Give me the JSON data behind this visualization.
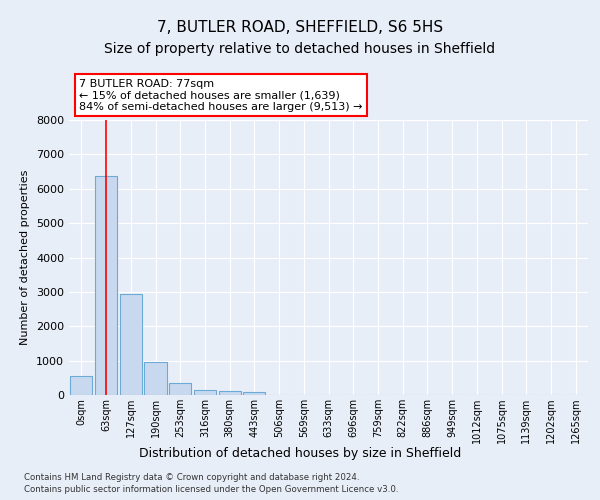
{
  "title": "7, BUTLER ROAD, SHEFFIELD, S6 5HS",
  "subtitle": "Size of property relative to detached houses in Sheffield",
  "xlabel": "Distribution of detached houses by size in Sheffield",
  "ylabel": "Number of detached properties",
  "footer_line1": "Contains HM Land Registry data © Crown copyright and database right 2024.",
  "footer_line2": "Contains public sector information licensed under the Open Government Licence v3.0.",
  "bar_labels": [
    "0sqm",
    "63sqm",
    "127sqm",
    "190sqm",
    "253sqm",
    "316sqm",
    "380sqm",
    "443sqm",
    "506sqm",
    "569sqm",
    "633sqm",
    "696sqm",
    "759sqm",
    "822sqm",
    "886sqm",
    "949sqm",
    "1012sqm",
    "1075sqm",
    "1139sqm",
    "1202sqm",
    "1265sqm"
  ],
  "bar_values": [
    550,
    6380,
    2930,
    970,
    340,
    160,
    110,
    80,
    0,
    0,
    0,
    0,
    0,
    0,
    0,
    0,
    0,
    0,
    0,
    0,
    0
  ],
  "bar_color": "#c8d9ef",
  "bar_edge_color": "#6aaad4",
  "property_line_x": 1,
  "annotation_text_line1": "7 BUTLER ROAD: 77sqm",
  "annotation_text_line2": "← 15% of detached houses are smaller (1,639)",
  "annotation_text_line3": "84% of semi-detached houses are larger (9,513) →",
  "annotation_box_facecolor": "white",
  "annotation_box_edgecolor": "red",
  "ylim": [
    0,
    8000
  ],
  "yticks": [
    0,
    1000,
    2000,
    3000,
    4000,
    5000,
    6000,
    7000,
    8000
  ],
  "background_color": "#e8eef8",
  "grid_color": "white",
  "title_fontsize": 11,
  "subtitle_fontsize": 10,
  "font_family": "DejaVu Sans"
}
